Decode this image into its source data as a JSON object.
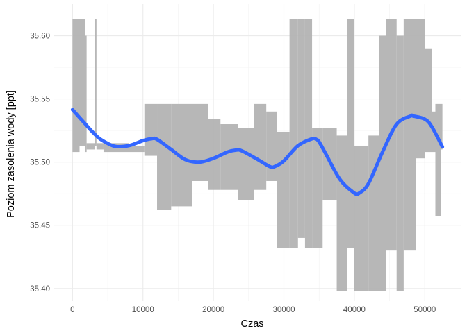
{
  "chart_data": {
    "type": "line",
    "title": "",
    "xlabel": "Czas",
    "ylabel": "Poziom zasolenia wody [ppt]",
    "xlim": [
      -2600,
      55200
    ],
    "ylim": [
      35.39,
      35.625
    ],
    "x_ticks": [
      0,
      10000,
      20000,
      30000,
      40000,
      50000
    ],
    "x_tick_labels": [
      "0",
      "10000",
      "20000",
      "30000",
      "40000",
      "50000"
    ],
    "y_ticks": [
      35.4,
      35.45,
      35.5,
      35.55,
      35.6
    ],
    "y_tick_labels": [
      "35.40",
      "35.45",
      "35.50",
      "35.55",
      "35.60"
    ],
    "grid": true,
    "legend": "none",
    "series": [
      {
        "role": "observations",
        "color": "#b3b3b3",
        "bands": [
          [
            0,
            1000,
            35.508,
            35.613
          ],
          [
            1000,
            1800,
            35.513,
            35.613
          ],
          [
            1800,
            2000,
            35.508,
            35.6
          ],
          [
            2000,
            3200,
            35.51,
            35.515
          ],
          [
            3200,
            3400,
            35.513,
            35.613
          ],
          [
            3400,
            4400,
            35.51,
            35.515
          ],
          [
            4400,
            8000,
            35.508,
            35.515
          ],
          [
            8000,
            10200,
            35.508,
            35.513
          ],
          [
            10200,
            12000,
            35.505,
            35.546
          ],
          [
            12000,
            14000,
            35.462,
            35.546
          ],
          [
            14000,
            17000,
            35.465,
            35.546
          ],
          [
            17000,
            19200,
            35.485,
            35.546
          ],
          [
            19200,
            21000,
            35.478,
            35.534
          ],
          [
            21000,
            23500,
            35.478,
            35.53
          ],
          [
            23500,
            25800,
            35.47,
            35.527
          ],
          [
            25800,
            27500,
            35.478,
            35.546
          ],
          [
            27500,
            29000,
            35.485,
            35.54
          ],
          [
            29000,
            30800,
            35.432,
            35.524
          ],
          [
            30800,
            32000,
            35.432,
            35.613
          ],
          [
            32000,
            33000,
            35.44,
            35.613
          ],
          [
            33000,
            34000,
            35.432,
            35.613
          ],
          [
            34000,
            35500,
            35.432,
            35.527
          ],
          [
            35500,
            37500,
            35.47,
            35.527
          ],
          [
            37500,
            39000,
            35.398,
            35.521
          ],
          [
            39000,
            40000,
            35.432,
            35.613
          ],
          [
            40000,
            42000,
            35.398,
            35.513
          ],
          [
            42000,
            43500,
            35.398,
            35.521
          ],
          [
            43500,
            44500,
            35.398,
            35.6
          ],
          [
            44500,
            46000,
            35.43,
            35.613
          ],
          [
            46000,
            47000,
            35.398,
            35.6
          ],
          [
            47000,
            48700,
            35.43,
            35.613
          ],
          [
            48700,
            50000,
            35.503,
            35.613
          ],
          [
            50000,
            51000,
            35.508,
            35.59
          ],
          [
            51000,
            51500,
            35.508,
            35.54
          ],
          [
            51500,
            52300,
            35.457,
            35.546
          ],
          [
            52300,
            52500,
            35.51,
            35.546
          ]
        ]
      },
      {
        "role": "smooth-trend",
        "color": "#3366ff",
        "x": [
          0,
          2000,
          3000,
          4000,
          6000,
          8000,
          10000,
          11200,
          12000,
          14000,
          16000,
          18000,
          20000,
          22000,
          23200,
          24000,
          26000,
          28000,
          28700,
          30000,
          32000,
          34000,
          34600,
          35000,
          36000,
          38000,
          40000,
          40700,
          42000,
          44000,
          46000,
          48000,
          48300,
          50000,
          51000,
          52500
        ],
        "y": [
          35.5415,
          35.529,
          35.523,
          35.518,
          35.5125,
          35.513,
          35.517,
          35.5185,
          35.518,
          35.51,
          35.502,
          35.5,
          35.503,
          35.508,
          35.5095,
          35.509,
          35.503,
          35.4965,
          35.4965,
          35.501,
          35.513,
          35.5185,
          35.518,
          35.516,
          35.506,
          35.486,
          35.4755,
          35.4755,
          35.483,
          35.508,
          35.53,
          35.5365,
          35.5365,
          35.534,
          35.528,
          35.512
        ]
      }
    ]
  }
}
